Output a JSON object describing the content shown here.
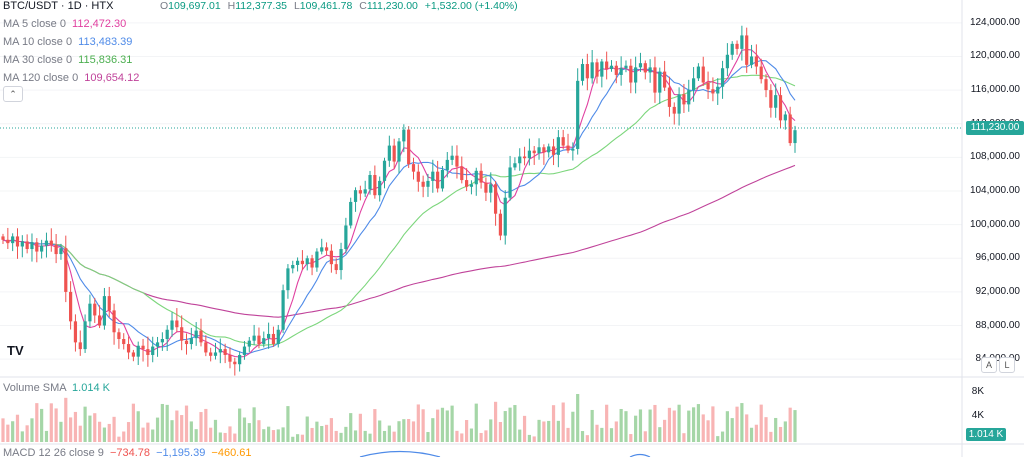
{
  "header": {
    "symbol": "BTC/USDT · 1D · HTX",
    "ohlc": {
      "open_label": "O",
      "open": "109,697.01",
      "high_label": "H",
      "high": "112,377.35",
      "low_label": "L",
      "low": "109,461.78",
      "close_label": "C",
      "close": "111,230.00",
      "change": "+1,532.00 (+1.40%)"
    }
  },
  "indicators": [
    {
      "label": "MA 5 close 0",
      "value": "112,472.30",
      "color": "#e040a0"
    },
    {
      "label": "MA 10 close 0",
      "value": "113,483.39",
      "color": "#4f8be8"
    },
    {
      "label": "MA 30 close 0",
      "value": "115,836.31",
      "color": "#7cd67c"
    },
    {
      "label": "MA 120 close 0",
      "value": "109,654.12",
      "color": "#c0439a"
    }
  ],
  "collapse_icon": "chevron-up-icon",
  "collapse_glyph": "⌃",
  "price_axis": [
    "124,000.00",
    "120,000.00",
    "116,000.00",
    "112,000.00",
    "108,000.00",
    "104,000.00",
    "100,000.00",
    "96,000.00",
    "92,000.00",
    "88,000.00",
    "84,000.00"
  ],
  "last_price": "111,230.00",
  "scale_buttons": {
    "auto": "A",
    "log": "L"
  },
  "volume": {
    "label": "Volume SMA",
    "value": "1.014 K",
    "axis": [
      "8K",
      "4K"
    ],
    "last": "1.014 K"
  },
  "macd": {
    "label": "MACD 12 26 close 9",
    "v1": "−734.78",
    "v2": "−1,195.39",
    "v3": "−460.61"
  },
  "logo_text": "TV",
  "colors": {
    "up": "#26a69a",
    "down": "#ef5350",
    "up_vol": "#a5d6a7",
    "down_vol": "#f8b4b4"
  },
  "chart_data": {
    "type": "candlestick",
    "ylim": [
      82000,
      126000
    ],
    "close": [
      98200,
      97800,
      98600,
      97400,
      98000,
      97100,
      97900,
      96800,
      97500,
      98100,
      97600,
      96500,
      97200,
      92000,
      88500,
      86000,
      85200,
      88500,
      90600,
      89200,
      88000,
      91500,
      89800,
      87200,
      86400,
      85800,
      84800,
      84300,
      85600,
      85200,
      84500,
      85500,
      86000,
      86400,
      87500,
      88600,
      87800,
      86200,
      85800,
      86500,
      87400,
      86000,
      84800,
      84400,
      84800,
      85200,
      84500,
      83700,
      83400,
      84500,
      85500,
      86200,
      86800,
      85800,
      86500,
      87000,
      85800,
      87500,
      92200,
      94800,
      95200,
      95700,
      95300,
      96000,
      94900,
      96800,
      97300,
      96900,
      95300,
      94600,
      97100,
      99900,
      102700,
      104100,
      103700,
      104200,
      105900,
      103500,
      105200,
      107600,
      109400,
      107500,
      109900,
      111300,
      107200,
      106300,
      105100,
      104500,
      105200,
      106300,
      104300,
      106500,
      107700,
      108200,
      106900,
      105300,
      104500,
      104800,
      106400,
      105000,
      103800,
      104800,
      101300,
      98700,
      103200,
      106800,
      107300,
      108100,
      107900,
      108800,
      108500,
      109200,
      108600,
      109300,
      108300,
      110400,
      109400,
      108800,
      109000,
      117100,
      119100,
      117400,
      119300,
      117600,
      119400,
      118500,
      118900,
      117800,
      118600,
      118900,
      116900,
      118700,
      119200,
      118100,
      118700,
      115700,
      118200,
      116300,
      114000,
      113200,
      115500,
      114300,
      116000,
      117400,
      118800,
      116900,
      116100,
      115600,
      116400,
      118600,
      120200,
      121500,
      120900,
      122500,
      119000,
      120000,
      118800,
      117300,
      116000,
      113900,
      115400,
      112400,
      113100,
      109700,
      111230
    ]
  }
}
